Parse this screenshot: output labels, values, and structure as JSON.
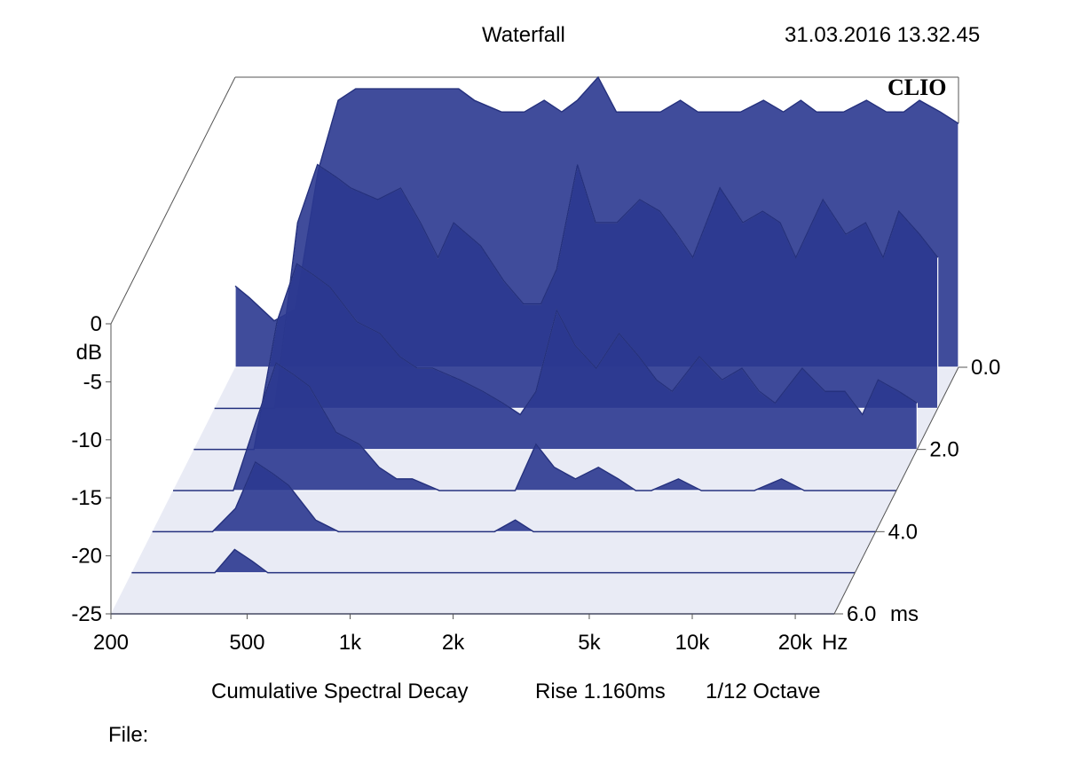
{
  "header": {
    "title": "Waterfall",
    "timestamp": "31.03.2016 13.32.45",
    "logo": "CLIO"
  },
  "footer": {
    "caption_main": "Cumulative Spectral Decay",
    "caption_rise": "Rise 1.160ms",
    "caption_smoothing": "1/12 Octave",
    "file_label": "File:"
  },
  "colors": {
    "fill": "#2b3990",
    "trace": "#24307e",
    "axis": "#555555",
    "background": "#ffffff"
  },
  "chart_data": {
    "type": "waterfall",
    "title": "Waterfall",
    "subtitle": "Cumulative Spectral Decay",
    "x_scale": "log",
    "xlim": [
      200,
      26000
    ],
    "x_ticks": [
      200,
      500,
      1000,
      2000,
      5000,
      10000,
      20000
    ],
    "x_tick_labels": [
      "200",
      "500",
      "1k",
      "2k",
      "5k",
      "10k",
      "20k"
    ],
    "x_unit": "Hz",
    "ylim": [
      -25,
      0
    ],
    "y_ticks": [
      0,
      -5,
      -10,
      -15,
      -20,
      -25
    ],
    "y_tick_labels": [
      "0",
      "-5",
      "-10",
      "-15",
      "-20",
      "-25"
    ],
    "y_unit": "dB",
    "zlim": [
      0,
      6
    ],
    "z_ticks": [
      0,
      2,
      4,
      6
    ],
    "z_tick_labels": [
      "0.0",
      "2.0",
      "4.0",
      "6.0"
    ],
    "z_unit": "ms",
    "rise_ms": 1.16,
    "smoothing": "1/12 Octave",
    "slice_times_ms": [
      0.0,
      1.0,
      2.0,
      3.0,
      4.0,
      5.0,
      6.0
    ],
    "frequencies": [
      200,
      220,
      260,
      300,
      350,
      400,
      450,
      500,
      600,
      700,
      800,
      900,
      1000,
      1200,
      1400,
      1600,
      1800,
      2000,
      2300,
      2600,
      3000,
      3500,
      4000,
      4500,
      5000,
      6000,
      7000,
      8000,
      9000,
      10000,
      12000,
      14000,
      16000,
      18000,
      20000,
      23000,
      26000
    ],
    "series": [
      {
        "values": [
          -18,
          -19,
          -21,
          -20,
          -8,
          -2,
          -1,
          -1,
          -1,
          -1,
          -1,
          -1,
          -2,
          -3,
          -3,
          -2,
          -3,
          -2,
          0,
          -3,
          -3,
          -3,
          -2,
          -3,
          -3,
          -3,
          -2,
          -3,
          -2,
          -3,
          -3,
          -2,
          -3,
          -3,
          -2,
          -3,
          -4
        ]
      },
      {
        "values": [
          -25,
          -25,
          -25,
          -25,
          -9,
          -4,
          -5,
          -6,
          -7,
          -6,
          -9,
          -12,
          -9,
          -11,
          -14,
          -16,
          -16,
          -13,
          -4,
          -9,
          -9,
          -7,
          -8,
          -10,
          -12,
          -6,
          -9,
          -8,
          -9,
          -12,
          -7,
          -10,
          -9,
          -12,
          -8,
          -10,
          -12
        ]
      },
      {
        "values": [
          -25,
          -25,
          -25,
          -25,
          -14,
          -9,
          -10,
          -11,
          -14,
          -15,
          -17,
          -18,
          -18,
          -19,
          -20,
          -21,
          -22,
          -20,
          -13,
          -16,
          -18,
          -15,
          -17,
          -19,
          -20,
          -17,
          -19,
          -18,
          -20,
          -21,
          -18,
          -20,
          -20,
          -22,
          -19,
          -20,
          -21
        ]
      },
      {
        "values": [
          -25,
          -25,
          -25,
          -25,
          -19,
          -14,
          -15,
          -16,
          -20,
          -21,
          -23,
          -24,
          -24,
          -25,
          -25,
          -25,
          -25,
          -25,
          -21,
          -23,
          -24,
          -23,
          -24,
          -25,
          -25,
          -24,
          -25,
          -25,
          -25,
          -25,
          -24,
          -25,
          -25,
          -25,
          -25,
          -25,
          -25
        ]
      },
      {
        "values": [
          -25,
          -25,
          -25,
          -25,
          -23,
          -19,
          -20,
          -21,
          -24,
          -25,
          -25,
          -25,
          -25,
          -25,
          -25,
          -25,
          -25,
          -25,
          -24,
          -25,
          -25,
          -25,
          -25,
          -25,
          -25,
          -25,
          -25,
          -25,
          -25,
          -25,
          -25,
          -25,
          -25,
          -25,
          -25,
          -25,
          -25
        ]
      },
      {
        "values": [
          -25,
          -25,
          -25,
          -25,
          -25,
          -23,
          -24,
          -25,
          -25,
          -25,
          -25,
          -25,
          -25,
          -25,
          -25,
          -25,
          -25,
          -25,
          -25,
          -25,
          -25,
          -25,
          -25,
          -25,
          -25,
          -25,
          -25,
          -25,
          -25,
          -25,
          -25,
          -25,
          -25,
          -25,
          -25,
          -25,
          -25
        ]
      },
      {
        "values": [
          -25,
          -25,
          -25,
          -25,
          -25,
          -25,
          -25,
          -25,
          -25,
          -25,
          -25,
          -25,
          -25,
          -25,
          -25,
          -25,
          -25,
          -25,
          -25,
          -25,
          -25,
          -25,
          -25,
          -25,
          -25,
          -25,
          -25,
          -25,
          -25,
          -25,
          -25,
          -25,
          -25,
          -25,
          -25,
          -25,
          -25
        ]
      }
    ]
  }
}
